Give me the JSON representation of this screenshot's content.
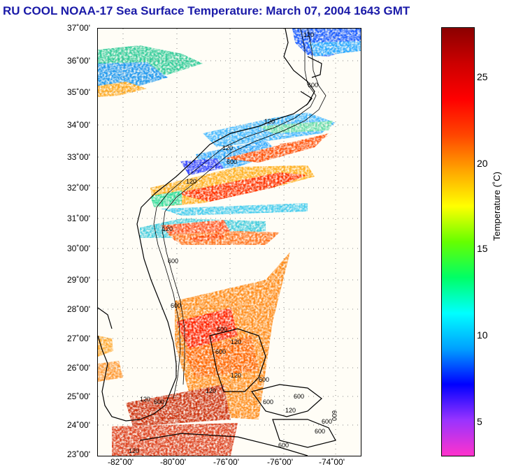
{
  "title": "RU COOL  NOAA-17  Sea Surface Temperature:  March 07, 2004 1643 GMT",
  "map": {
    "lat_labels": [
      "37˚00'",
      "36˚00'",
      "35˚00'",
      "34˚00'",
      "33˚00'",
      "32˚00'",
      "31˚00'",
      "30˚00'",
      "29˚00'",
      "28˚00'",
      "27˚00'",
      "26˚00'",
      "25˚00'",
      "24˚00'",
      "23˚00'"
    ],
    "lon_labels": [
      "-82˚00'",
      "-80˚00'",
      "-76˚00'",
      "-76˚00'",
      "-74˚00'"
    ],
    "depth_contour_labels": [
      "120",
      "600",
      "120",
      "120",
      "600",
      "120",
      "120",
      "600",
      "600",
      "600",
      "120",
      "600",
      "120",
      "600",
      "120",
      "600",
      "120",
      "600",
      "600",
      "600",
      "600",
      "120",
      "600",
      "120",
      "600"
    ]
  },
  "colorbar": {
    "label": "Temperature (˚C)",
    "ticks": [
      "25",
      "20",
      "15",
      "10",
      "5"
    ],
    "min": 3,
    "max": 28,
    "colors": [
      "#ff33cc",
      "#9933ff",
      "#0000ff",
      "#00a0ff",
      "#00ffff",
      "#00ff66",
      "#66ff00",
      "#ffff00",
      "#ffa500",
      "#ff4500",
      "#ff0000",
      "#cc0000",
      "#8b0000"
    ]
  }
}
